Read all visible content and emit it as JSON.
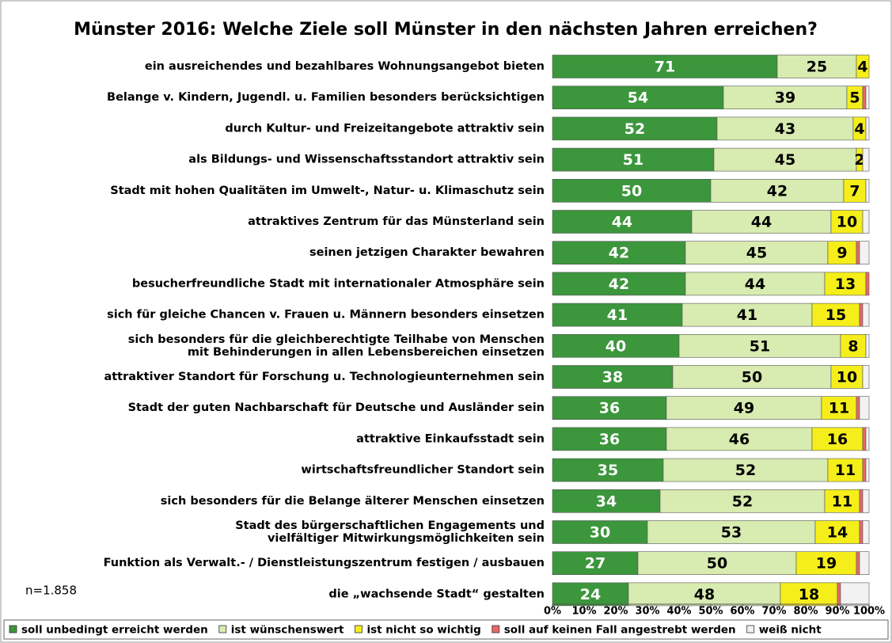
{
  "chart_data": {
    "type": "stacked-barh",
    "title": "Münster 2016: Welche Ziele soll Münster in den nächsten Jahren erreichen?",
    "note": "n=1.858",
    "categories": [
      "ein ausreichendes und bezahlbares Wohnungsangebot bieten",
      "Belange v. Kindern, Jugendl. u. Familien besonders berücksichtigen",
      "durch Kultur- und Freizeitangebote attraktiv sein",
      "als Bildungs- und Wissenschaftsstandort attraktiv sein",
      "Stadt mit hohen Qualitäten im Umwelt-, Natur- u. Klimaschutz sein",
      "attraktives Zentrum für das Münsterland sein",
      "seinen jetzigen Charakter bewahren",
      "besucherfreundliche Stadt mit internationaler Atmosphäre sein",
      "sich für gleiche Chancen v. Frauen u. Männern besonders einsetzen",
      "sich besonders für die gleichberechtigte Teilhabe von Menschen\nmit Behinderungen in allen Lebensbereichen einsetzen",
      "attraktiver Standort für Forschung u. Technologieunternehmen sein",
      "Stadt der guten Nachbarschaft für Deutsche und Ausländer sein",
      "attraktive Einkaufsstadt sein",
      "wirtschaftsfreundlicher Standort sein",
      "sich besonders für die Belange älterer Menschen einsetzen",
      "Stadt des bürgerschaftlichen Engagements und\nvielfältiger Mitwirkungsmöglichkeiten sein",
      "Funktion als Verwalt.- / Dienstleistungszentrum festigen / ausbauen",
      "die „wachsende Stadt“ gestalten"
    ],
    "series": [
      {
        "name": "soll unbedingt erreicht werden",
        "color": "#3c963c",
        "label_color": "#ffffff",
        "show_values": true,
        "values": [
          71,
          54,
          52,
          51,
          50,
          44,
          42,
          42,
          41,
          40,
          38,
          36,
          36,
          35,
          34,
          30,
          27,
          24
        ]
      },
      {
        "name": "ist wünschenswert",
        "color": "#d8ebb0",
        "label_color": "#000000",
        "show_values": true,
        "values": [
          25,
          39,
          43,
          45,
          42,
          44,
          45,
          44,
          41,
          51,
          50,
          49,
          46,
          52,
          52,
          53,
          50,
          48
        ]
      },
      {
        "name": "ist nicht so wichtig",
        "color": "#f5ee1a",
        "label_color": "#000000",
        "show_values": true,
        "values": [
          4,
          5,
          4,
          2,
          7,
          10,
          9,
          13,
          15,
          8,
          10,
          11,
          16,
          11,
          11,
          14,
          19,
          18
        ]
      },
      {
        "name": "soll auf keinen Fall angestrebt werden",
        "color": "#e8686a",
        "label_color": "#000000",
        "show_values": false,
        "values": [
          0,
          1,
          0,
          0,
          0,
          0,
          1,
          1,
          1,
          0,
          0,
          1,
          1,
          1,
          1,
          1,
          1,
          1
        ]
      },
      {
        "name": "weiß nicht",
        "color": "#f2f2f2",
        "label_color": "#000000",
        "show_values": false,
        "values": [
          0,
          1,
          1,
          2,
          1,
          2,
          3,
          0,
          2,
          1,
          2,
          3,
          1,
          1,
          2,
          2,
          3,
          9
        ]
      }
    ],
    "xlim": [
      0,
      100
    ],
    "xticks": [
      {
        "value": 0,
        "label": "0%"
      },
      {
        "value": 10,
        "label": "10%"
      },
      {
        "value": 20,
        "label": "20%"
      },
      {
        "value": 30,
        "label": "30%"
      },
      {
        "value": 40,
        "label": "40%"
      },
      {
        "value": 50,
        "label": "50%"
      },
      {
        "value": 60,
        "label": "60%"
      },
      {
        "value": 70,
        "label": "70%"
      },
      {
        "value": 80,
        "label": "80%"
      },
      {
        "value": 90,
        "label": "90%"
      },
      {
        "value": 100,
        "label": "100%"
      }
    ]
  }
}
